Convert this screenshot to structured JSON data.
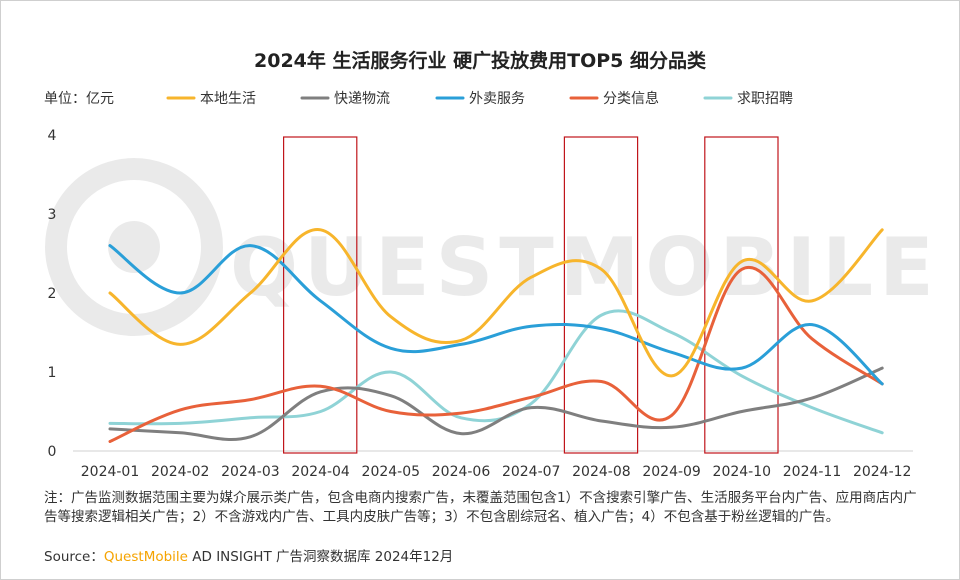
{
  "footnote": "注：广告监测数据范围主要为媒介展示类广告，包含电商内搜索广告，未覆盖范围包含1）不含搜索引擎广告、生活服务平台内广告、应用商店内广告等搜索逻辑相关广告；2）不含游戏内广告、工具内皮肤广告等；3）不包含剧综冠名、植入广告；4）不包含基于粉丝逻辑的广告。",
  "source_label": "Source：",
  "source_brand": "QuestMobile",
  "source_rest": " AD INSIGHT 广告洞察数据库 2024年12月",
  "chart_data": {
    "type": "line",
    "title": "2024年 生活服务行业 硬广投放费用TOP5 细分品类",
    "unit_label": "单位：亿元",
    "categories": [
      "2024-01",
      "2024-02",
      "2024-03",
      "2024-04",
      "2024-05",
      "2024-06",
      "2024-07",
      "2024-08",
      "2024-09",
      "2024-10",
      "2024-11",
      "2024-12"
    ],
    "ylim": [
      0,
      4
    ],
    "yticks": [
      "0",
      "1",
      "2",
      "3",
      "4"
    ],
    "grid": false,
    "legend_position": "top",
    "series": [
      {
        "name": "本地生活",
        "color": "#f7b52c",
        "values": [
          2.0,
          1.35,
          2.0,
          2.8,
          1.7,
          1.4,
          2.2,
          2.3,
          0.95,
          2.4,
          1.9,
          2.8
        ]
      },
      {
        "name": "快递物流",
        "color": "#7f7f7f",
        "values": [
          0.28,
          0.23,
          0.18,
          0.75,
          0.7,
          0.22,
          0.55,
          0.38,
          0.3,
          0.5,
          0.67,
          1.05
        ]
      },
      {
        "name": "外卖服务",
        "color": "#2a9fd8",
        "values": [
          2.6,
          2.0,
          2.6,
          1.9,
          1.3,
          1.35,
          1.58,
          1.55,
          1.25,
          1.05,
          1.6,
          0.85
        ]
      },
      {
        "name": "分类信息",
        "color": "#e8613a",
        "values": [
          0.12,
          0.52,
          0.65,
          0.82,
          0.5,
          0.48,
          0.68,
          0.88,
          0.45,
          2.3,
          1.42,
          0.85
        ]
      },
      {
        "name": "求职招聘",
        "color": "#8fd3d6",
        "values": [
          0.35,
          0.35,
          0.42,
          0.5,
          1.0,
          0.42,
          0.6,
          1.72,
          1.5,
          0.95,
          0.55,
          0.23
        ]
      }
    ],
    "highlight_boxes": [
      {
        "from_category": "2024-04",
        "color": "#c0151b"
      },
      {
        "from_category": "2024-08",
        "color": "#c0151b"
      },
      {
        "from_category": "2024-10",
        "color": "#c0151b"
      }
    ],
    "watermark": "QUESTMOBILE"
  }
}
